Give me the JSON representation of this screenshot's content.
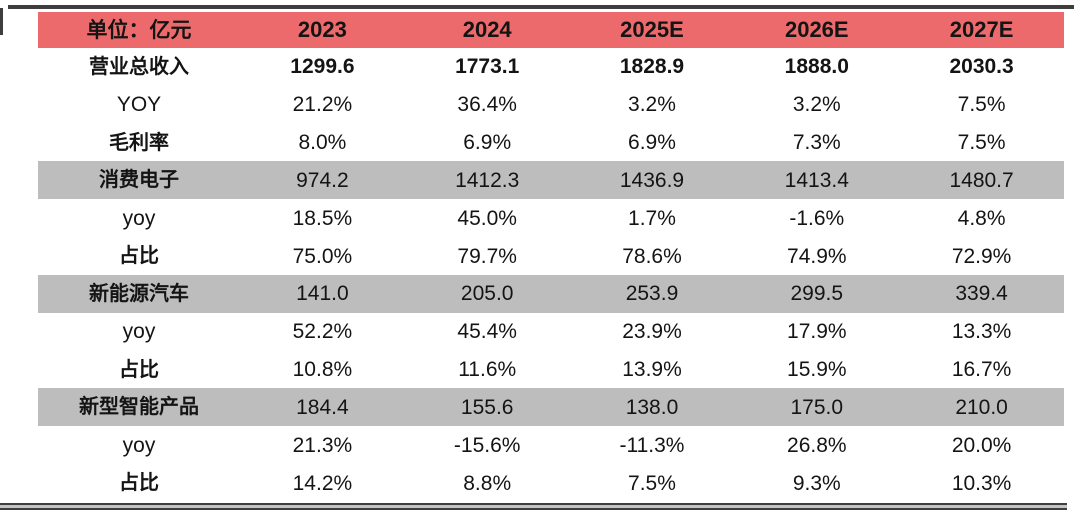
{
  "colors": {
    "header_bg": "#ec6a6b",
    "section_bg": "#bdbdbd",
    "rule": "#3e3e3e",
    "text": "#141414"
  },
  "chart_data": {
    "type": "table",
    "unit_header": "单位：亿元",
    "columns": [
      "2023",
      "2024",
      "2025E",
      "2026E",
      "2027E"
    ],
    "rows": [
      {
        "label": "营业总收入",
        "style": "total",
        "values": [
          "1299.6",
          "1773.1",
          "1828.9",
          "1888.0",
          "2030.3"
        ]
      },
      {
        "label": "YOY",
        "style": "plain",
        "values": [
          "21.2%",
          "36.4%",
          "3.2%",
          "3.2%",
          "7.5%"
        ]
      },
      {
        "label": "毛利率",
        "style": "plain",
        "values": [
          "8.0%",
          "6.9%",
          "6.9%",
          "7.3%",
          "7.5%"
        ]
      },
      {
        "label": "消费电子",
        "style": "section",
        "values": [
          "974.2",
          "1412.3",
          "1436.9",
          "1413.4",
          "1480.7"
        ]
      },
      {
        "label": "yoy",
        "style": "plain",
        "values": [
          "18.5%",
          "45.0%",
          "1.7%",
          "-1.6%",
          "4.8%"
        ]
      },
      {
        "label": "占比",
        "style": "plain",
        "values": [
          "75.0%",
          "79.7%",
          "78.6%",
          "74.9%",
          "72.9%"
        ]
      },
      {
        "label": "新能源汽车",
        "style": "section",
        "values": [
          "141.0",
          "205.0",
          "253.9",
          "299.5",
          "339.4"
        ]
      },
      {
        "label": "yoy",
        "style": "plain",
        "values": [
          "52.2%",
          "45.4%",
          "23.9%",
          "17.9%",
          "13.3%"
        ]
      },
      {
        "label": "占比",
        "style": "plain",
        "values": [
          "10.8%",
          "11.6%",
          "13.9%",
          "15.9%",
          "16.7%"
        ]
      },
      {
        "label": "新型智能产品",
        "style": "section",
        "values": [
          "184.4",
          "155.6",
          "138.0",
          "175.0",
          "210.0"
        ]
      },
      {
        "label": "yoy",
        "style": "plain",
        "values": [
          "21.3%",
          "-15.6%",
          "-11.3%",
          "26.8%",
          "20.0%"
        ]
      },
      {
        "label": "占比",
        "style": "plain",
        "values": [
          "14.2%",
          "8.8%",
          "7.5%",
          "9.3%",
          "10.3%"
        ]
      }
    ]
  }
}
